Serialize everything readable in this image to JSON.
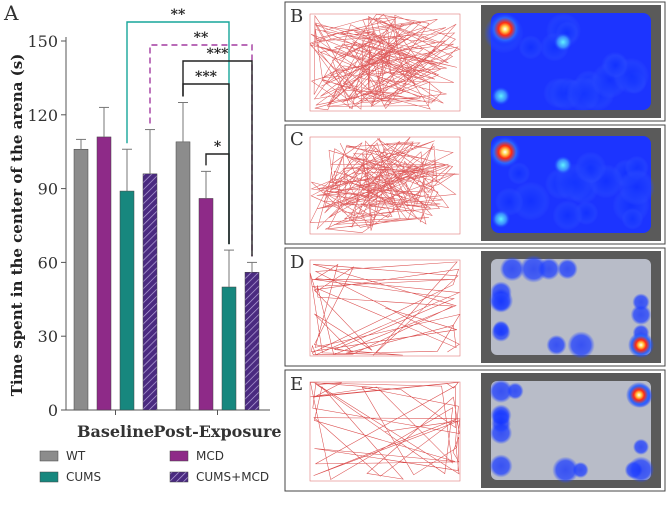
{
  "chart_data": {
    "type": "bar",
    "panel_label": "A",
    "title": "",
    "ylabel": "Time spent in the center of the arena (s)",
    "xlabel": "",
    "ylim": [
      0,
      150
    ],
    "yticks": [
      0,
      30,
      60,
      90,
      120,
      150
    ],
    "categories": [
      "Baseline",
      "Post-Exposure"
    ],
    "series": [
      {
        "name": "WT",
        "color": "#8c8c8c",
        "pattern": "solid",
        "values": [
          106,
          109
        ],
        "errors": [
          4,
          16
        ]
      },
      {
        "name": "MCD",
        "color": "#8e2a88",
        "pattern": "solid",
        "values": [
          111,
          86
        ],
        "errors": [
          12,
          11
        ]
      },
      {
        "name": "CUMS",
        "color": "#17877e",
        "pattern": "solid",
        "values": [
          89,
          50
        ],
        "errors": [
          17,
          15
        ]
      },
      {
        "name": "CUMS+MCD",
        "color": "#4a2a80",
        "pattern": "hatched",
        "values": [
          96,
          56
        ],
        "errors": [
          18,
          4
        ]
      }
    ],
    "significance": [
      {
        "label": "**",
        "color": "#17a69a",
        "style": "solid"
      },
      {
        "label": "**",
        "color": "#a23aa0",
        "style": "dashed"
      },
      {
        "label": "***",
        "color": "#222222",
        "style": "solid"
      },
      {
        "label": "***",
        "color": "#222222",
        "style": "solid"
      },
      {
        "label": "*",
        "color": "#222222",
        "style": "solid"
      }
    ],
    "legend_position": "bottom"
  },
  "panels": [
    {
      "label": "B",
      "track": "dense",
      "heat": "high"
    },
    {
      "label": "C",
      "track": "dense",
      "heat": "high"
    },
    {
      "label": "D",
      "track": "sparse",
      "heat": "low"
    },
    {
      "label": "E",
      "track": "sparse",
      "heat": "low"
    }
  ]
}
